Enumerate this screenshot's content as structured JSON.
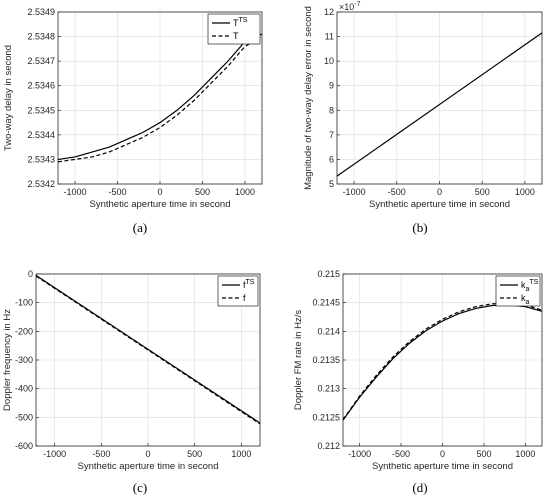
{
  "chart_data": [
    {
      "id": "a",
      "type": "line",
      "caption": "(a)",
      "xlabel": "Synthetic aperture time in second",
      "ylabel": "Two-way delay in second",
      "xlim": [
        -1200,
        1200
      ],
      "ylim": [
        2.5342,
        2.5349
      ],
      "xticks": [
        -1000,
        -500,
        0,
        500,
        1000
      ],
      "xtick_labels": [
        "-1000",
        "-500",
        "0",
        "500",
        "1000"
      ],
      "yticks": [
        2.5342,
        2.5343,
        2.5344,
        2.5345,
        2.5346,
        2.5347,
        2.5348,
        2.5349
      ],
      "ytick_labels": [
        "2.5342",
        "2.5343",
        "2.5344",
        "2.5345",
        "2.5346",
        "2.5347",
        "2.5348",
        "2.5349"
      ],
      "grid": true,
      "legend": "top-right",
      "series": [
        {
          "name": "T",
          "name_sup": "TS",
          "style": "solid",
          "x": [
            -1200,
            -1000,
            -800,
            -600,
            -400,
            -200,
            0,
            200,
            400,
            600,
            800,
            1000,
            1200
          ],
          "y": [
            2.5343,
            2.53431,
            2.53433,
            2.53435,
            2.53438,
            2.53441,
            2.53445,
            2.5345,
            2.53456,
            2.53463,
            2.5347,
            2.53478,
            2.53481
          ]
        },
        {
          "name": "T",
          "name_sup": "",
          "style": "dashed",
          "x": [
            -1200,
            -1000,
            -800,
            -600,
            -400,
            -200,
            0,
            200,
            400,
            600,
            800,
            1000,
            1200
          ],
          "y": [
            2.53429,
            2.5343,
            2.53431,
            2.53433,
            2.53436,
            2.53439,
            2.53443,
            2.53448,
            2.53454,
            2.53461,
            2.53468,
            2.53476,
            2.5348
          ]
        }
      ]
    },
    {
      "id": "b",
      "type": "line",
      "caption": "(b)",
      "xlabel": "Synthetic aperture time in second",
      "ylabel": "Magnitude of two-way delay error in second",
      "xlim": [
        -1200,
        1200
      ],
      "ylim": [
        5,
        12
      ],
      "y_multiplier": "×10",
      "y_multiplier_exp": "-7",
      "xticks": [
        -1000,
        -500,
        0,
        500,
        1000
      ],
      "xtick_labels": [
        "-1000",
        "-500",
        "0",
        "500",
        "1000"
      ],
      "yticks": [
        5,
        6,
        7,
        8,
        9,
        10,
        11,
        12
      ],
      "ytick_labels": [
        "5",
        "6",
        "7",
        "8",
        "9",
        "10",
        "11",
        "12"
      ],
      "grid": true,
      "series": [
        {
          "style": "solid",
          "x": [
            -1200,
            1200
          ],
          "y": [
            5.32,
            11.15
          ]
        }
      ]
    },
    {
      "id": "c",
      "type": "line",
      "caption": "(c)",
      "xlabel": "Synthetic aperture time in second",
      "ylabel": "Doppler frequency in Hz",
      "xlim": [
        -1200,
        1200
      ],
      "ylim": [
        -600,
        0
      ],
      "xticks": [
        -1000,
        -500,
        0,
        500,
        1000
      ],
      "xtick_labels": [
        "-1000",
        "-500",
        "0",
        "500",
        "1000"
      ],
      "yticks": [
        -600,
        -500,
        -400,
        -300,
        -200,
        -100,
        0
      ],
      "ytick_labels": [
        "-600",
        "-500",
        "-400",
        "-300",
        "-200",
        "-100",
        "0"
      ],
      "grid": true,
      "legend": "top-right",
      "series": [
        {
          "name": "f",
          "name_sup": "TS",
          "style": "solid",
          "x": [
            -1200,
            1200
          ],
          "y": [
            -5,
            -520
          ]
        },
        {
          "name": "f",
          "name_sup": "",
          "style": "dashed",
          "x": [
            -1200,
            1200
          ],
          "y": [
            -7,
            -523
          ]
        }
      ]
    },
    {
      "id": "d",
      "type": "line",
      "caption": "(d)",
      "xlabel": "Synthetic aperture time in second",
      "ylabel": "Doppler FM rate in Hz/s",
      "xlim": [
        -1200,
        1200
      ],
      "ylim": [
        0.212,
        0.215
      ],
      "xticks": [
        -1000,
        -500,
        0,
        500,
        1000
      ],
      "xtick_labels": [
        "-1000",
        "-500",
        "0",
        "500",
        "1000"
      ],
      "yticks": [
        0.212,
        0.2125,
        0.213,
        0.2135,
        0.214,
        0.2145,
        0.215
      ],
      "ytick_labels": [
        "0.212",
        "0.2125",
        "0.213",
        "0.2135",
        "0.214",
        "0.2145",
        "0.215"
      ],
      "grid": true,
      "legend": "top-right",
      "series": [
        {
          "name": "k",
          "name_sub": "a",
          "name_sup": "TS",
          "style": "solid",
          "x": [
            -1200,
            -1000,
            -800,
            -600,
            -400,
            -200,
            0,
            200,
            400,
            600,
            800,
            1000,
            1200
          ],
          "y": [
            0.21245,
            0.21285,
            0.2132,
            0.21352,
            0.21379,
            0.21401,
            0.21418,
            0.21431,
            0.2144,
            0.21445,
            0.21446,
            0.21443,
            0.21435
          ]
        },
        {
          "name": "k",
          "name_sub": "a",
          "name_sup": "",
          "style": "dashed",
          "x": [
            -1200,
            -1000,
            -800,
            -600,
            -400,
            -200,
            0,
            200,
            400,
            600,
            800,
            1000,
            1200
          ],
          "y": [
            0.21246,
            0.21287,
            0.21323,
            0.21355,
            0.21382,
            0.21404,
            0.21421,
            0.21434,
            0.21443,
            0.21448,
            0.21449,
            0.21446,
            0.21437
          ]
        }
      ]
    }
  ]
}
